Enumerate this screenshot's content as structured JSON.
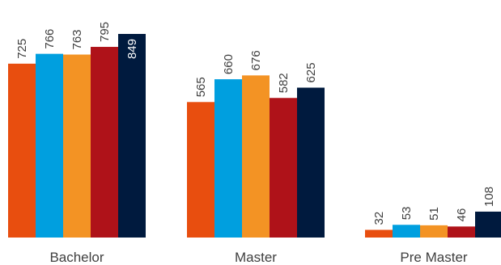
{
  "chart_data": {
    "type": "bar",
    "title": "",
    "xlabel": "",
    "ylabel": "",
    "categories": [
      "Bachelor",
      "Master",
      "Pre Master"
    ],
    "series": [
      {
        "values": [
          725,
          565,
          32
        ],
        "color": "#E84E0F"
      },
      {
        "values": [
          766,
          660,
          53
        ],
        "color": "#009FDF"
      },
      {
        "values": [
          763,
          676,
          51
        ],
        "color": "#F39324"
      },
      {
        "values": [
          795,
          582,
          46
        ],
        "color": "#AF1219"
      },
      {
        "values": [
          849,
          625,
          108
        ],
        "color": "#001A3E"
      }
    ],
    "ylim": [
      0,
      849
    ],
    "grid": false,
    "legend": "none",
    "data_labels": true
  }
}
